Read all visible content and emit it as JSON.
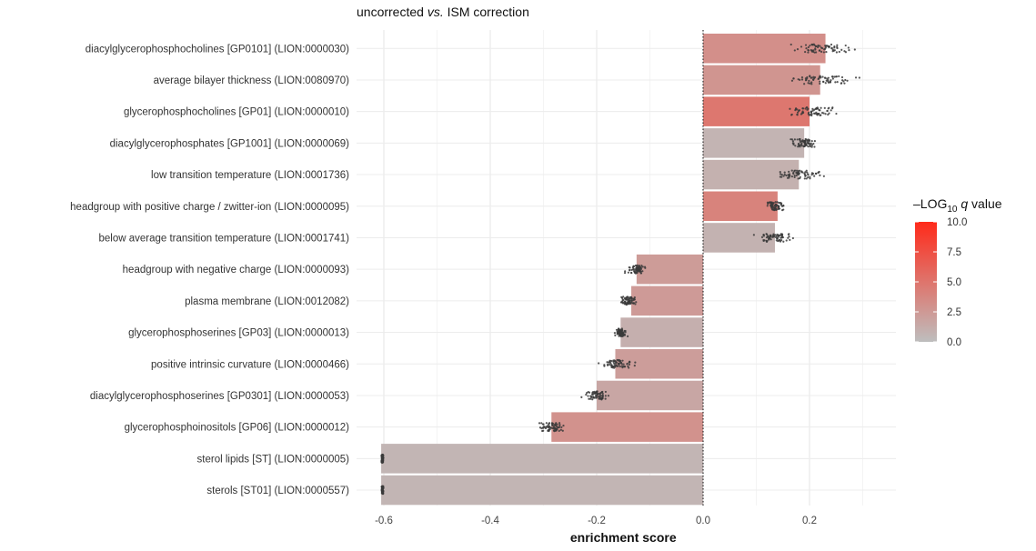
{
  "chart_data": {
    "type": "bar",
    "orientation": "horizontal",
    "title": {
      "prefix": "uncorrected ",
      "italic": "vs.",
      "suffix": " ISM correction"
    },
    "xlabel": "enrichment score",
    "ylabel": "",
    "xlim": [
      -0.63,
      0.37
    ],
    "xticks": [
      -0.6,
      -0.4,
      -0.2,
      0.0,
      0.2
    ],
    "xtick_labels": [
      "-0.6",
      "-0.4",
      "-0.2",
      "0.0",
      "0.2"
    ],
    "grid": true,
    "reference_line": 0.0,
    "categories": [
      "diacylglycerophosphocholines [GP0101] (LION:0000030)",
      "average bilayer thickness (LION:0080970)",
      "glycerophosphocholines [GP01] (LION:0000010)",
      "diacylglycerophosphates [GP1001] (LION:0000069)",
      "low transition temperature (LION:0001736)",
      "headgroup with positive charge / zwitter-ion (LION:0000095)",
      "below average transition temperature (LION:0001741)",
      "headgroup with negative charge (LION:0000093)",
      "plasma membrane (LION:0012082)",
      "glycerophosphoserines [GP03] (LION:0000013)",
      "positive intrinsic curvature (LION:0000466)",
      "diacylglycerophosphoserines [GP0301] (LION:0000053)",
      "glycerophosphoinositols [GP06] (LION:0000012)",
      "sterol lipids [ST] (LION:0000005)",
      "sterols [ST01] (LION:0000557)"
    ],
    "values": [
      0.23,
      0.22,
      0.2,
      0.19,
      0.18,
      0.14,
      0.135,
      -0.125,
      -0.135,
      -0.155,
      -0.165,
      -0.2,
      -0.285,
      -0.605,
      -0.605
    ],
    "neg_log10_q": [
      3.2,
      2.8,
      4.8,
      0.7,
      0.9,
      4.0,
      0.8,
      2.3,
      2.4,
      1.0,
      2.2,
      1.6,
      3.0,
      0.6,
      0.6
    ],
    "point_spread": [
      [
        0.15,
        0.31
      ],
      [
        0.15,
        0.31
      ],
      [
        0.14,
        0.27
      ],
      [
        0.16,
        0.22
      ],
      [
        0.13,
        0.24
      ],
      [
        0.11,
        0.16
      ],
      [
        0.09,
        0.18
      ],
      [
        -0.15,
        -0.1
      ],
      [
        -0.16,
        -0.12
      ],
      [
        -0.17,
        -0.14
      ],
      [
        -0.2,
        -0.12
      ],
      [
        -0.23,
        -0.17
      ],
      [
        -0.32,
        -0.25
      ],
      [
        -0.605,
        -0.6
      ],
      [
        -0.605,
        -0.6
      ]
    ],
    "legend": {
      "title_prefix": "–LOG",
      "title_sub": "10",
      "title_italic": "q",
      "title_suffix": " value",
      "ticks": [
        10.0,
        7.5,
        5.0,
        2.5,
        0.0
      ],
      "tick_labels": [
        "10.0",
        "7.5",
        "5.0",
        "2.5",
        "0.0"
      ],
      "range": [
        0,
        10
      ],
      "low_color": "#bebebe",
      "high_color": "#ff2a1a",
      "placement": "right"
    }
  }
}
